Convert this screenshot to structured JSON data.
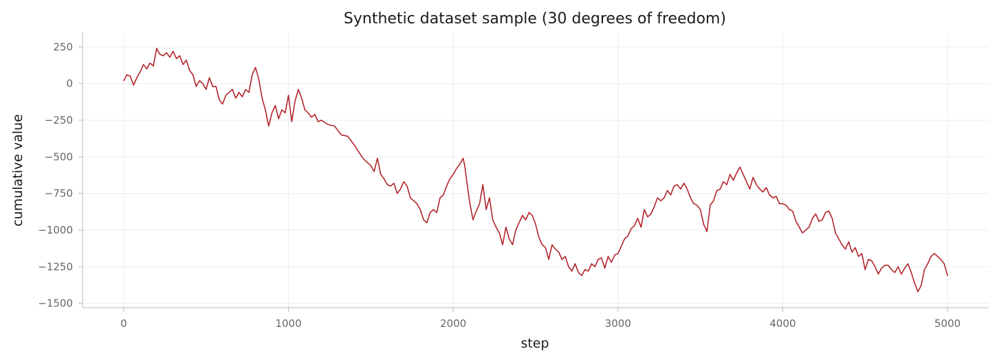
{
  "chart_data": {
    "type": "line",
    "title": "Synthetic dataset sample (30 degrees of freedom)",
    "xlabel": "step",
    "ylabel": "cumulative value",
    "xlim": [
      -250,
      5250
    ],
    "ylim": [
      -1530,
      350
    ],
    "x_ticks": [
      0,
      1000,
      2000,
      3000,
      4000,
      5000
    ],
    "x_tick_labels": [
      "0",
      "1000",
      "2000",
      "3000",
      "4000",
      "5000"
    ],
    "y_ticks": [
      250,
      0,
      -250,
      -500,
      -750,
      -1000,
      -1250,
      -1500
    ],
    "y_tick_labels": [
      "250",
      "0",
      "−250",
      "−500",
      "−750",
      "−1000",
      "−1250",
      "−1500"
    ],
    "grid": true,
    "legend": "none",
    "series": [
      {
        "color": "#b2232a",
        "x": [
          0,
          20,
          40,
          60,
          80,
          100,
          120,
          140,
          160,
          180,
          200,
          220,
          240,
          260,
          280,
          300,
          320,
          340,
          360,
          380,
          400,
          420,
          440,
          460,
          480,
          500,
          520,
          540,
          560,
          580,
          600,
          620,
          640,
          660,
          680,
          700,
          720,
          740,
          760,
          780,
          800,
          820,
          840,
          860,
          880,
          900,
          920,
          940,
          960,
          980,
          1000,
          1020,
          1040,
          1060,
          1080,
          1100,
          1120,
          1140,
          1160,
          1180,
          1200,
          1240,
          1280,
          1320,
          1360,
          1400,
          1440,
          1460,
          1480,
          1500,
          1520,
          1540,
          1560,
          1580,
          1600,
          1620,
          1640,
          1660,
          1680,
          1700,
          1720,
          1740,
          1760,
          1780,
          1800,
          1820,
          1840,
          1860,
          1880,
          1900,
          1920,
          1940,
          1960,
          1980,
          2000,
          2020,
          2040,
          2060,
          2070,
          2080,
          2100,
          2120,
          2140,
          2160,
          2180,
          2200,
          2220,
          2240,
          2260,
          2280,
          2300,
          2320,
          2340,
          2360,
          2380,
          2400,
          2420,
          2440,
          2460,
          2480,
          2500,
          2520,
          2540,
          2560,
          2580,
          2600,
          2620,
          2640,
          2660,
          2680,
          2700,
          2720,
          2740,
          2760,
          2780,
          2800,
          2820,
          2840,
          2860,
          2880,
          2900,
          2920,
          2940,
          2960,
          2980,
          3000,
          3020,
          3040,
          3060,
          3080,
          3100,
          3120,
          3140,
          3160,
          3180,
          3200,
          3220,
          3240,
          3260,
          3280,
          3300,
          3320,
          3340,
          3360,
          3380,
          3400,
          3420,
          3440,
          3460,
          3480,
          3500,
          3520,
          3540,
          3560,
          3580,
          3600,
          3620,
          3640,
          3660,
          3680,
          3700,
          3720,
          3740,
          3760,
          3780,
          3800,
          3820,
          3840,
          3860,
          3880,
          3900,
          3920,
          3940,
          3960,
          3980,
          4000,
          4020,
          4040,
          4060,
          4080,
          4100,
          4120,
          4140,
          4160,
          4180,
          4200,
          4220,
          4240,
          4260,
          4280,
          4300,
          4320,
          4340,
          4360,
          4380,
          4400,
          4420,
          4440,
          4460,
          4480,
          4500,
          4520,
          4540,
          4560,
          4580,
          4600,
          4620,
          4640,
          4660,
          4680,
          4700,
          4720,
          4740,
          4760,
          4780,
          4800,
          4820,
          4840,
          4860,
          4880,
          4900,
          4920,
          4940,
          4960,
          4980,
          5000
        ],
        "y": [
          20,
          60,
          50,
          -10,
          40,
          80,
          130,
          100,
          140,
          120,
          240,
          200,
          190,
          210,
          180,
          220,
          170,
          190,
          130,
          160,
          90,
          60,
          -20,
          20,
          0,
          -40,
          40,
          -20,
          -20,
          -110,
          -140,
          -80,
          -60,
          -40,
          -100,
          -60,
          -90,
          -40,
          -60,
          60,
          110,
          30,
          -100,
          -180,
          -290,
          -200,
          -150,
          -240,
          -180,
          -200,
          -80,
          -260,
          -120,
          -40,
          -100,
          -180,
          -200,
          -230,
          -210,
          -260,
          -250,
          -280,
          -290,
          -350,
          -360,
          -420,
          -490,
          -520,
          -540,
          -560,
          -600,
          -510,
          -620,
          -650,
          -690,
          -700,
          -680,
          -750,
          -720,
          -670,
          -700,
          -780,
          -800,
          -820,
          -860,
          -930,
          -950,
          -880,
          -860,
          -880,
          -780,
          -760,
          -700,
          -650,
          -620,
          -580,
          -550,
          -510,
          -560,
          -650,
          -810,
          -930,
          -870,
          -820,
          -690,
          -860,
          -780,
          -930,
          -980,
          -1020,
          -1100,
          -980,
          -1060,
          -1100,
          -1000,
          -950,
          -900,
          -930,
          -880,
          -900,
          -960,
          -1050,
          -1100,
          -1120,
          -1200,
          -1100,
          -1130,
          -1150,
          -1200,
          -1180,
          -1250,
          -1280,
          -1230,
          -1290,
          -1310,
          -1270,
          -1280,
          -1230,
          -1250,
          -1200,
          -1190,
          -1260,
          -1180,
          -1220,
          -1170,
          -1160,
          -1110,
          -1060,
          -1040,
          -990,
          -970,
          -920,
          -980,
          -860,
          -910,
          -890,
          -840,
          -780,
          -800,
          -780,
          -730,
          -760,
          -700,
          -690,
          -720,
          -680,
          -720,
          -780,
          -820,
          -830,
          -860,
          -960,
          -1010,
          -830,
          -800,
          -730,
          -720,
          -670,
          -690,
          -620,
          -660,
          -610,
          -570,
          -620,
          -670,
          -720,
          -640,
          -690,
          -720,
          -740,
          -710,
          -760,
          -780,
          -770,
          -820,
          -820,
          -830,
          -860,
          -870,
          -940,
          -980,
          -1020,
          -1000,
          -980,
          -920,
          -890,
          -940,
          -930,
          -880,
          -870,
          -920,
          -1020,
          -1060,
          -1100,
          -1130,
          -1080,
          -1150,
          -1120,
          -1180,
          -1160,
          -1270,
          -1200,
          -1210,
          -1250,
          -1300,
          -1260,
          -1240,
          -1240,
          -1270,
          -1290,
          -1250,
          -1300,
          -1260,
          -1230,
          -1290,
          -1360,
          -1420,
          -1380,
          -1270,
          -1230,
          -1180,
          -1160,
          -1180,
          -1200,
          -1230,
          -1310
        ]
      }
    ]
  }
}
